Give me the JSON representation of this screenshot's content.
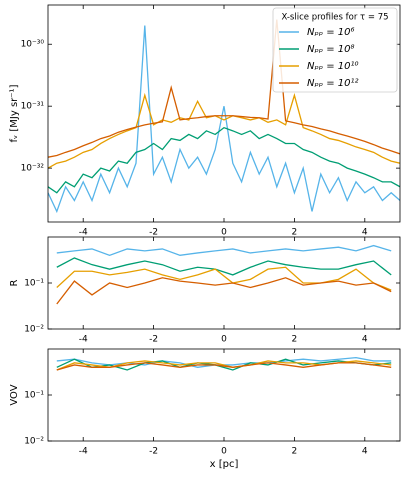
{
  "chart_data": [
    {
      "type": "line",
      "ylabel": "fᵥ [MJy sr⁻¹]",
      "log_y": true,
      "legend": "upper right",
      "legend_title": "X-slice profiles for τ = 75",
      "xlim": [
        -5,
        5
      ],
      "xticks": [
        -4,
        -2,
        0,
        2,
        4
      ],
      "ylim": [
        1.35e-33,
        4.3e-30
      ],
      "yticks": [
        {
          "value": 1e-32,
          "label": "10⁻³²"
        },
        {
          "value": 1e-31,
          "label": "10⁻³¹"
        },
        {
          "value": 1e-30,
          "label": "10⁻³⁰"
        }
      ],
      "x": [
        -5,
        -4.75,
        -4.5,
        -4.25,
        -4,
        -3.75,
        -3.5,
        -3.25,
        -3,
        -2.75,
        -2.5,
        -2.25,
        -2,
        -1.75,
        -1.5,
        -1.25,
        -1,
        -0.75,
        -0.5,
        -0.25,
        0,
        0.25,
        0.5,
        0.75,
        1,
        1.25,
        1.5,
        1.75,
        2,
        2.25,
        2.5,
        2.75,
        3,
        3.25,
        3.5,
        3.75,
        4,
        4.25,
        4.5,
        4.75,
        5
      ],
      "series": [
        {
          "name": "Nₚₚ = 10⁶",
          "color": "#56b4e9",
          "values": [
            4e-33,
            2e-33,
            5e-33,
            3e-33,
            6e-33,
            3e-33,
            8e-33,
            4e-33,
            1e-32,
            5e-33,
            1.2e-32,
            2e-30,
            8e-33,
            1.5e-32,
            6e-33,
            2e-32,
            1e-32,
            1.5e-32,
            8e-33,
            2e-32,
            1e-31,
            1.2e-32,
            6e-33,
            1.8e-32,
            8e-33,
            1.5e-32,
            5e-33,
            1.2e-32,
            4e-33,
            1e-32,
            2e-33,
            8e-33,
            4e-33,
            7e-33,
            3e-33,
            6e-33,
            4e-33,
            5e-33,
            3e-33,
            4e-33,
            3e-33
          ]
        },
        {
          "name": "Nₚₚ = 10⁸",
          "color": "#009e73",
          "values": [
            5e-33,
            4e-33,
            6e-33,
            5e-33,
            8e-33,
            7e-33,
            1e-32,
            9e-33,
            1.3e-32,
            1.2e-32,
            1.8e-32,
            2e-32,
            2.5e-32,
            2e-32,
            3e-32,
            2.8e-32,
            3.5e-32,
            3e-32,
            4e-32,
            3.5e-32,
            4.5e-32,
            4e-32,
            3.5e-32,
            4e-32,
            3e-32,
            3.5e-32,
            3e-32,
            2.5e-32,
            2.5e-32,
            2e-32,
            1.8e-32,
            1.5e-32,
            1.3e-32,
            1.2e-32,
            1e-32,
            9e-33,
            8e-33,
            7e-33,
            6e-33,
            6e-33,
            5e-33
          ]
        },
        {
          "name": "Nₚₚ = 10¹⁰",
          "color": "#e69f00",
          "values": [
            1e-32,
            1.2e-32,
            1.3e-32,
            1.5e-32,
            1.8e-32,
            2e-32,
            2.5e-32,
            3e-32,
            3.5e-32,
            4e-32,
            4.5e-32,
            1.5e-31,
            5e-32,
            6e-32,
            5.5e-32,
            6.5e-32,
            6e-32,
            1.2e-31,
            6.5e-32,
            7e-32,
            6e-32,
            7e-32,
            6.5e-32,
            6e-32,
            6.5e-32,
            5.5e-32,
            6e-32,
            5e-32,
            1.5e-31,
            4.5e-32,
            4e-32,
            3.5e-32,
            3e-32,
            2.8e-32,
            2.5e-32,
            2.2e-32,
            2e-32,
            1.8e-32,
            1.5e-32,
            1.3e-32,
            1.2e-32
          ]
        },
        {
          "name": "Nₚₚ = 10¹²",
          "color": "#d55e00",
          "values": [
            1.5e-32,
            1.6e-32,
            1.8e-32,
            2e-32,
            2.3e-32,
            2.6e-32,
            3e-32,
            3.3e-32,
            3.8e-32,
            4.2e-32,
            4.6e-32,
            5e-32,
            5.3e-32,
            5.6e-32,
            2e-31,
            6e-32,
            6.3e-32,
            6.5e-32,
            6.8e-32,
            7e-32,
            7e-32,
            7e-32,
            6.8e-32,
            6.6e-32,
            6.5e-32,
            6.2e-32,
            2.5e-30,
            5.8e-32,
            5.4e-32,
            5e-32,
            4.7e-32,
            4.3e-32,
            4e-32,
            3.6e-32,
            3.3e-32,
            3e-32,
            2.7e-32,
            2.4e-32,
            2.1e-32,
            1.9e-32,
            1.7e-32
          ]
        }
      ]
    },
    {
      "type": "line",
      "ylabel": "R",
      "log_y": true,
      "xlim": [
        -5,
        5
      ],
      "xticks": [
        -4,
        -2,
        0,
        2,
        4
      ],
      "ylim": [
        0.01,
        1
      ],
      "yticks": [
        {
          "value": 0.01,
          "label": "10⁻²"
        },
        {
          "value": 0.1,
          "label": "10⁻¹"
        }
      ],
      "x": [
        -4.75,
        -4.25,
        -3.75,
        -3.25,
        -2.75,
        -2.25,
        -1.75,
        -1.25,
        -0.75,
        -0.25,
        0.25,
        0.75,
        1.25,
        1.75,
        2.25,
        2.75,
        3.25,
        3.75,
        4.25,
        4.75
      ],
      "series": [
        {
          "color": "#56b4e9",
          "values": [
            0.45,
            0.5,
            0.55,
            0.4,
            0.55,
            0.5,
            0.55,
            0.4,
            0.45,
            0.5,
            0.55,
            0.45,
            0.5,
            0.55,
            0.5,
            0.55,
            0.6,
            0.5,
            0.65,
            0.5
          ]
        },
        {
          "color": "#009e73",
          "values": [
            0.22,
            0.35,
            0.25,
            0.2,
            0.25,
            0.3,
            0.25,
            0.18,
            0.22,
            0.2,
            0.15,
            0.22,
            0.3,
            0.25,
            0.22,
            0.2,
            0.2,
            0.25,
            0.3,
            0.15
          ]
        },
        {
          "color": "#e69f00",
          "values": [
            0.08,
            0.18,
            0.18,
            0.15,
            0.17,
            0.2,
            0.15,
            0.12,
            0.15,
            0.2,
            0.1,
            0.12,
            0.2,
            0.22,
            0.1,
            0.1,
            0.12,
            0.2,
            0.1,
            0.07
          ]
        },
        {
          "color": "#d55e00",
          "values": [
            0.035,
            0.11,
            0.055,
            0.1,
            0.08,
            0.1,
            0.13,
            0.11,
            0.1,
            0.09,
            0.1,
            0.08,
            0.1,
            0.13,
            0.09,
            0.1,
            0.11,
            0.09,
            0.1,
            0.065
          ]
        }
      ]
    },
    {
      "type": "line",
      "ylabel": "VOV",
      "xlabel": "x [pc]",
      "log_y": true,
      "xlim": [
        -5,
        5
      ],
      "xticks": [
        -4,
        -2,
        0,
        2,
        4
      ],
      "ylim": [
        0.01,
        1
      ],
      "yticks": [
        {
          "value": 0.01,
          "label": "10⁻²"
        },
        {
          "value": 0.1,
          "label": "10⁻¹"
        }
      ],
      "x": [
        -4.75,
        -4.25,
        -3.75,
        -3.25,
        -2.75,
        -2.25,
        -1.75,
        -1.25,
        -0.75,
        -0.25,
        0.25,
        0.75,
        1.25,
        1.75,
        2.25,
        2.75,
        3.25,
        3.75,
        4.25,
        4.75
      ],
      "series": [
        {
          "color": "#56b4e9",
          "values": [
            0.55,
            0.6,
            0.5,
            0.45,
            0.5,
            0.45,
            0.55,
            0.5,
            0.4,
            0.45,
            0.45,
            0.5,
            0.5,
            0.55,
            0.6,
            0.55,
            0.6,
            0.65,
            0.55,
            0.55
          ]
        },
        {
          "color": "#009e73",
          "values": [
            0.4,
            0.6,
            0.4,
            0.45,
            0.35,
            0.5,
            0.55,
            0.4,
            0.5,
            0.45,
            0.35,
            0.5,
            0.45,
            0.6,
            0.45,
            0.5,
            0.55,
            0.5,
            0.45,
            0.5
          ]
        },
        {
          "color": "#e69f00",
          "values": [
            0.35,
            0.5,
            0.45,
            0.4,
            0.5,
            0.55,
            0.5,
            0.45,
            0.5,
            0.5,
            0.4,
            0.45,
            0.55,
            0.5,
            0.5,
            0.45,
            0.5,
            0.55,
            0.5,
            0.45
          ]
        },
        {
          "color": "#d55e00",
          "values": [
            0.35,
            0.45,
            0.4,
            0.4,
            0.45,
            0.5,
            0.45,
            0.4,
            0.45,
            0.45,
            0.4,
            0.45,
            0.5,
            0.45,
            0.4,
            0.45,
            0.5,
            0.5,
            0.45,
            0.4
          ]
        }
      ]
    }
  ]
}
